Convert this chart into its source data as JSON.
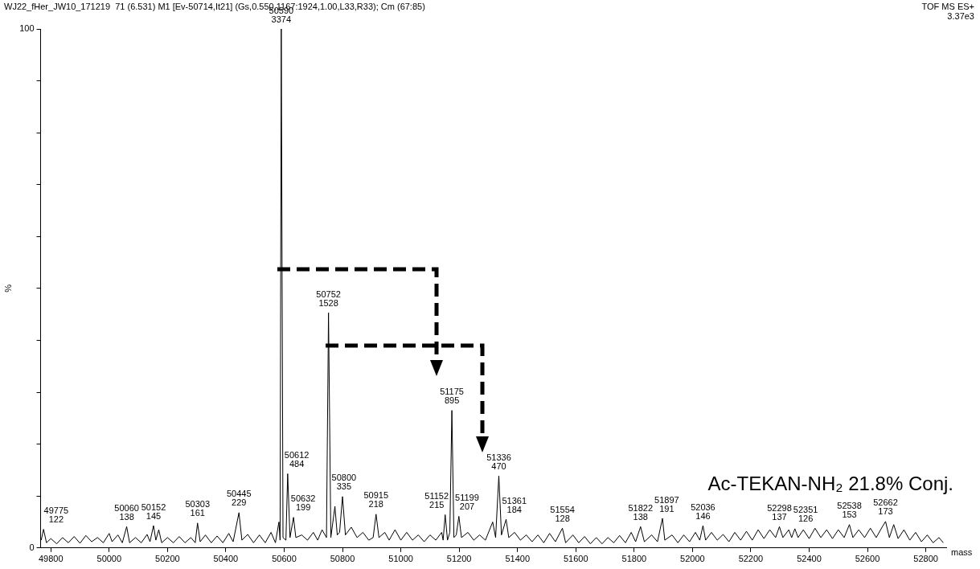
{
  "chart_data": {
    "type": "line",
    "title": "WJ22_fHer_JW10_171219  71 (6.531) M1 [Ev-50714,It21] (Gs,0.550,1167:1924,1.00,L33,R33); Cm (67:85)",
    "xlabel": "mass",
    "ylabel": "%",
    "xlim": [
      49765,
      52870
    ],
    "xticks": [
      49800,
      50000,
      50200,
      50400,
      50600,
      50800,
      51000,
      51200,
      51400,
      51600,
      51800,
      52000,
      52200,
      52400,
      52600,
      52800
    ],
    "ylim": [
      0,
      100
    ],
    "yticks": [
      0,
      {
        "value": 10,
        "label": null
      },
      {
        "value": 20,
        "label": null
      },
      {
        "value": 30,
        "label": null
      },
      {
        "value": 40,
        "label": null
      },
      {
        "value": 50,
        "label": null
      },
      {
        "value": 60,
        "label": null
      },
      {
        "value": 70,
        "label": null
      },
      {
        "value": 80,
        "label": null
      },
      {
        "value": 90,
        "label": null
      },
      100
    ],
    "marker": "none",
    "line_style": "solid",
    "series": [
      {
        "color": "#000000",
        "x": [
          49767,
          49775,
          49785,
          49800,
          49820,
          49840,
          49860,
          49880,
          49900,
          49920,
          49940,
          49960,
          49980,
          50000,
          50010,
          50030,
          50045,
          50060,
          50070,
          50090,
          50110,
          50130,
          50140,
          50152,
          50160,
          50170,
          50180,
          50200,
          50220,
          50240,
          50260,
          50280,
          50295,
          50303,
          50312,
          50330,
          50350,
          50370,
          50390,
          50410,
          50425,
          50445,
          50455,
          50475,
          50495,
          50515,
          50535,
          50555,
          50570,
          50582,
          50586,
          50590,
          50596,
          50606,
          50612,
          50620,
          50632,
          50640,
          50660,
          50680,
          50700,
          50715,
          50730,
          50745,
          50752,
          50760,
          50774,
          50782,
          50790,
          50800,
          50810,
          50830,
          50850,
          50870,
          50890,
          50905,
          50915,
          50925,
          50945,
          50960,
          50980,
          51000,
          51020,
          51040,
          51060,
          51080,
          51100,
          51120,
          51140,
          51145,
          51152,
          51160,
          51168,
          51175,
          51182,
          51190,
          51199,
          51208,
          51230,
          51250,
          51270,
          51290,
          51315,
          51325,
          51336,
          51345,
          51361,
          51370,
          51390,
          51410,
          51430,
          51450,
          51470,
          51490,
          51510,
          51530,
          51554,
          51565,
          51590,
          51610,
          51630,
          51650,
          51670,
          51690,
          51710,
          51730,
          51750,
          51770,
          51790,
          51805,
          51822,
          51835,
          51860,
          51880,
          51897,
          51905,
          51930,
          51950,
          51970,
          51990,
          52010,
          52025,
          52036,
          52045,
          52065,
          52085,
          52105,
          52125,
          52145,
          52165,
          52185,
          52205,
          52225,
          52245,
          52265,
          52285,
          52298,
          52310,
          52330,
          52340,
          52351,
          52362,
          52380,
          52400,
          52420,
          52440,
          52460,
          52480,
          52500,
          52520,
          52538,
          52550,
          52570,
          52590,
          52610,
          52630,
          52650,
          52662,
          52675,
          52690,
          52705,
          52725,
          52745,
          52765,
          52785,
          52805,
          52825,
          52845,
          52860
        ],
        "values": [
          1.5,
          3.6,
          1.0,
          1.8,
          0.8,
          2.0,
          1.0,
          2.2,
          0.9,
          2.4,
          1.2,
          2.0,
          1.0,
          2.8,
          1.2,
          2.5,
          1.0,
          4.1,
          1.0,
          2.0,
          1.0,
          2.6,
          1.2,
          4.3,
          1.5,
          3.5,
          1.0,
          2.0,
          1.0,
          2.2,
          1.0,
          2.0,
          1.0,
          4.8,
          1.2,
          2.5,
          1.0,
          2.3,
          1.0,
          2.8,
          1.2,
          6.8,
          1.5,
          2.6,
          1.0,
          2.5,
          1.0,
          3.0,
          1.0,
          5.0,
          1.5,
          100,
          2.0,
          1.5,
          14.3,
          2.0,
          5.9,
          2.0,
          2.5,
          1.5,
          3.0,
          1.5,
          3.5,
          2.0,
          45.3,
          2.0,
          8.0,
          2.5,
          3.0,
          9.9,
          2.5,
          4.0,
          2.0,
          3.0,
          1.5,
          2.0,
          6.5,
          2.0,
          3.0,
          1.5,
          3.5,
          1.5,
          3.0,
          1.5,
          2.5,
          1.2,
          2.5,
          1.5,
          3.0,
          1.5,
          6.4,
          1.5,
          3.0,
          26.5,
          2.0,
          2.5,
          6.1,
          2.0,
          3.0,
          1.5,
          2.5,
          1.5,
          5.0,
          2.0,
          13.9,
          2.5,
          5.5,
          2.0,
          3.0,
          1.5,
          2.5,
          1.2,
          2.5,
          1.0,
          2.8,
          1.2,
          3.8,
          1.0,
          2.5,
          1.0,
          2.2,
          0.8,
          2.0,
          0.8,
          2.0,
          1.0,
          2.4,
          1.0,
          3.0,
          1.2,
          4.1,
          1.2,
          2.5,
          1.2,
          5.7,
          1.5,
          2.5,
          1.0,
          2.5,
          1.2,
          3.0,
          1.5,
          4.3,
          1.5,
          3.0,
          1.5,
          2.6,
          1.2,
          3.0,
          1.5,
          3.2,
          1.5,
          3.5,
          1.8,
          3.5,
          2.0,
          4.1,
          2.0,
          3.5,
          2.0,
          3.7,
          2.0,
          3.5,
          1.8,
          3.8,
          2.0,
          3.5,
          1.8,
          3.5,
          2.0,
          4.5,
          2.0,
          3.5,
          2.0,
          3.8,
          2.0,
          4.0,
          5.1,
          2.0,
          4.5,
          1.8,
          3.5,
          1.5,
          3.0,
          1.2,
          2.5,
          1.0,
          2.0,
          1.0
        ]
      }
    ],
    "annotations": [
      "TOF MS ES+",
      "3.37e3",
      "Ac-TEKAN-NH₂ 21.8% Conj.",
      {
        "text": "49775\n122",
        "x": 49775,
        "y": 3.6
      },
      {
        "text": "50060\n138",
        "x": 50060,
        "y": 4.1
      },
      {
        "text": "50152\n145",
        "x": 50152,
        "y": 4.3
      },
      {
        "text": "50303\n161",
        "x": 50303,
        "y": 4.8
      },
      {
        "text": "50445\n229",
        "x": 50445,
        "y": 6.8
      },
      {
        "text": "50590\n3374",
        "x": 50590,
        "y": 100
      },
      {
        "text": "50612\n484",
        "x": 50612,
        "y": 14.3
      },
      {
        "text": "50632\n199",
        "x": 50632,
        "y": 5.9
      },
      {
        "text": "50752\n1528",
        "x": 50752,
        "y": 45.3
      },
      {
        "text": "50800\n335",
        "x": 50800,
        "y": 9.9
      },
      {
        "text": "50915\n218",
        "x": 50915,
        "y": 6.5
      },
      {
        "text": "51152\n215",
        "x": 51152,
        "y": 6.4
      },
      {
        "text": "51175\n895",
        "x": 51175,
        "y": 26.5
      },
      {
        "text": "51199\n207",
        "x": 51199,
        "y": 6.1
      },
      {
        "text": "51336\n470",
        "x": 51336,
        "y": 13.9
      },
      {
        "text": "51361\n184",
        "x": 51361,
        "y": 5.5
      },
      {
        "text": "51554\n128",
        "x": 51554,
        "y": 3.8
      },
      {
        "text": "51822\n138",
        "x": 51822,
        "y": 4.1
      },
      {
        "text": "51897\n191",
        "x": 51897,
        "y": 5.7
      },
      {
        "text": "52036\n146",
        "x": 52036,
        "y": 4.3
      },
      {
        "text": "52298\n137",
        "x": 52298,
        "y": 4.1
      },
      {
        "text": "52351\n126",
        "x": 52351,
        "y": 3.7
      },
      {
        "text": "52538\n153",
        "x": 52538,
        "y": 4.5
      },
      {
        "text": "52662\n173",
        "x": 52662,
        "y": 5.1
      }
    ]
  }
}
